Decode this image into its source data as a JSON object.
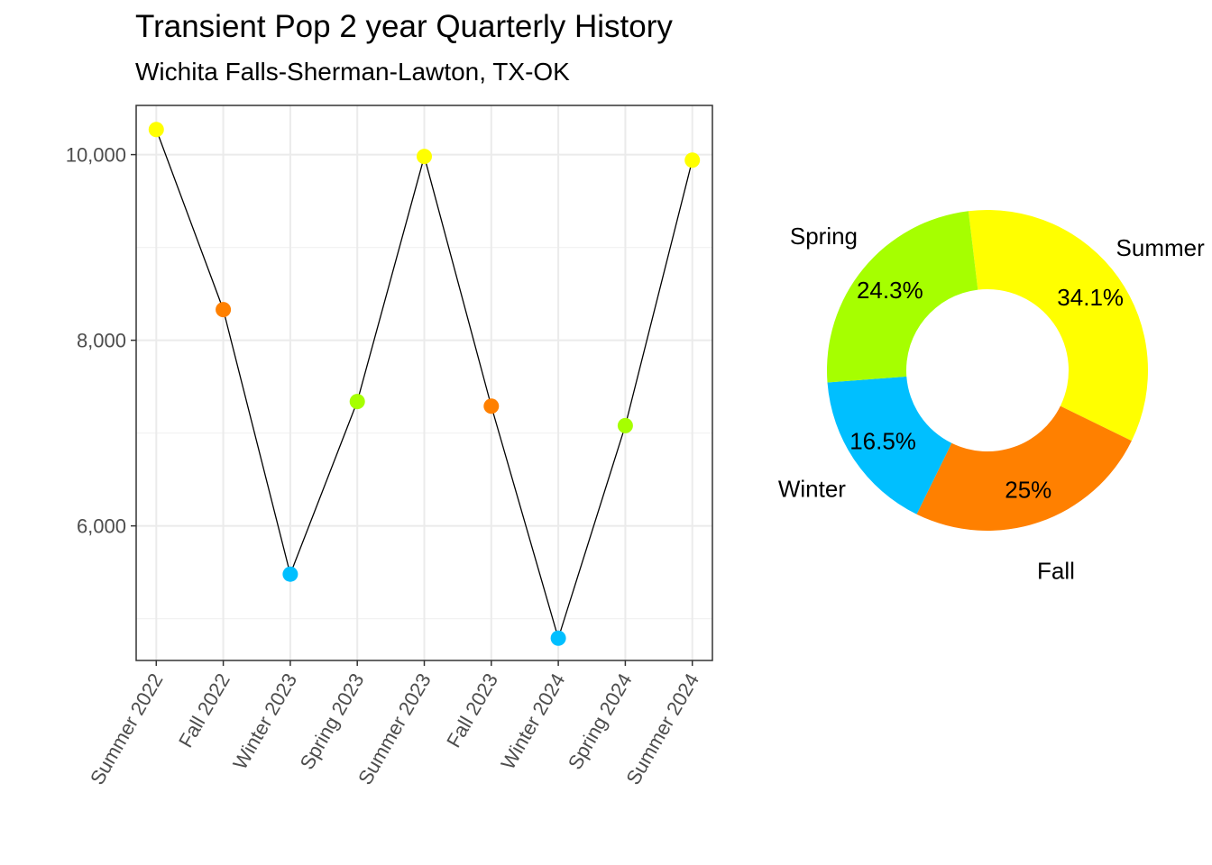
{
  "title": "Transient Pop 2 year Quarterly History",
  "subtitle": "Wichita Falls-Sherman-Lawton, TX-OK",
  "chart_data": [
    {
      "type": "line",
      "categories": [
        "Summer 2022",
        "Fall 2022",
        "Winter 2023",
        "Spring 2023",
        "Summer 2023",
        "Fall 2023",
        "Winter 2024",
        "Spring 2024",
        "Summer 2024"
      ],
      "values": [
        10270,
        8330,
        5480,
        7340,
        9980,
        7290,
        4790,
        7080,
        9940
      ],
      "point_seasons": [
        "Summer",
        "Fall",
        "Winter",
        "Spring",
        "Summer",
        "Fall",
        "Winter",
        "Spring",
        "Summer"
      ],
      "ylim": [
        4550,
        10530
      ],
      "yticks": [
        6000,
        8000,
        10000
      ],
      "ytick_labels": [
        "6,000",
        "8,000",
        "10,000"
      ],
      "xlabel": "",
      "ylabel": "",
      "grid": true,
      "line_color": "#000000"
    },
    {
      "type": "pie",
      "donut": true,
      "slices": [
        {
          "name": "Summer",
          "value": 34.1,
          "label": "34.1%",
          "color": "#FFFF00"
        },
        {
          "name": "Fall",
          "value": 25.0,
          "label": "25%",
          "color": "#FF8000"
        },
        {
          "name": "Winter",
          "value": 16.5,
          "label": "16.5%",
          "color": "#00BFFF"
        },
        {
          "name": "Spring",
          "value": 24.3,
          "label": "24.3%",
          "color": "#A6FF00"
        }
      ]
    }
  ]
}
